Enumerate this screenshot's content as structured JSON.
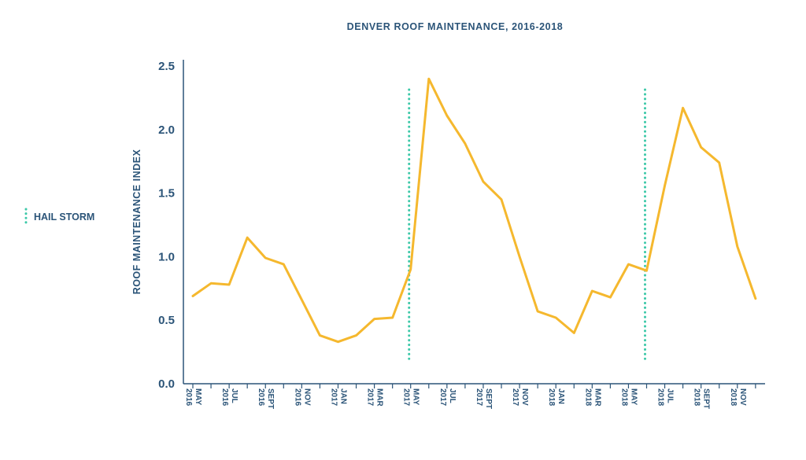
{
  "chart_data": {
    "type": "line",
    "title": "DENVER ROOF MAINTENANCE, 2016-2018",
    "ylabel": "ROOF MAINTENANCE INDEX",
    "xlabel": "",
    "ylim": [
      0,
      2.5
    ],
    "yticks": [
      "0.0",
      "0.5",
      "1.0",
      "1.5",
      "2.0",
      "2.5"
    ],
    "grid": false,
    "legend_placement": "left",
    "colors": {
      "line": "#f5b82e",
      "event": "#3cc8a8",
      "axis": "#2b5478",
      "text": "#2b5478"
    },
    "x": [
      "2016-05",
      "2016-06",
      "2016-07",
      "2016-08",
      "2016-09",
      "2016-10",
      "2016-11",
      "2016-12",
      "2017-01",
      "2017-02",
      "2017-03",
      "2017-04",
      "2017-05",
      "2017-06",
      "2017-07",
      "2017-08",
      "2017-09",
      "2017-10",
      "2017-11",
      "2017-12",
      "2018-01",
      "2018-02",
      "2018-03",
      "2018-04",
      "2018-05",
      "2018-06",
      "2018-07",
      "2018-08",
      "2018-09",
      "2018-10",
      "2018-11",
      "2018-12"
    ],
    "xtick_labels": [
      {
        "x": "2016-05",
        "line1": "MAY",
        "line2": "2016"
      },
      {
        "x": "2016-07",
        "line1": "JUL",
        "line2": "2016"
      },
      {
        "x": "2016-09",
        "line1": "SEPT",
        "line2": "2016"
      },
      {
        "x": "2016-11",
        "line1": "NOV",
        "line2": "2016"
      },
      {
        "x": "2017-01",
        "line1": "JAN",
        "line2": "2017"
      },
      {
        "x": "2017-03",
        "line1": "MAR",
        "line2": "2017"
      },
      {
        "x": "2017-05",
        "line1": "MAY",
        "line2": "2017"
      },
      {
        "x": "2017-07",
        "line1": "JUL",
        "line2": "2017"
      },
      {
        "x": "2017-09",
        "line1": "SEPT",
        "line2": "2017"
      },
      {
        "x": "2017-11",
        "line1": "NOV",
        "line2": "2017"
      },
      {
        "x": "2018-01",
        "line1": "JAN",
        "line2": "2018"
      },
      {
        "x": "2018-03",
        "line1": "MAR",
        "line2": "2018"
      },
      {
        "x": "2018-05",
        "line1": "MAY",
        "line2": "2018"
      },
      {
        "x": "2018-07",
        "line1": "JUL",
        "line2": "2018"
      },
      {
        "x": "2018-09",
        "line1": "SEPT",
        "line2": "2018"
      },
      {
        "x": "2018-11",
        "line1": "NOV",
        "line2": "2018"
      }
    ],
    "series": [
      {
        "name": "",
        "values": [
          0.69,
          0.79,
          0.78,
          1.15,
          0.99,
          0.94,
          0.66,
          0.38,
          0.33,
          0.38,
          0.51,
          0.52,
          0.9,
          2.4,
          2.11,
          1.89,
          1.59,
          1.45,
          1.0,
          0.57,
          0.52,
          0.4,
          0.73,
          0.68,
          0.94,
          0.89,
          1.56,
          2.17,
          1.86,
          1.74,
          1.08,
          0.67
        ]
      }
    ],
    "events": [
      {
        "name": "HAIL STORM",
        "x": "2017-05"
      },
      {
        "name": "HAIL STORM",
        "x": "2018-06"
      }
    ],
    "legend": [
      {
        "label": "HAIL STORM",
        "style": "dotted",
        "color": "#3cc8a8"
      }
    ]
  }
}
